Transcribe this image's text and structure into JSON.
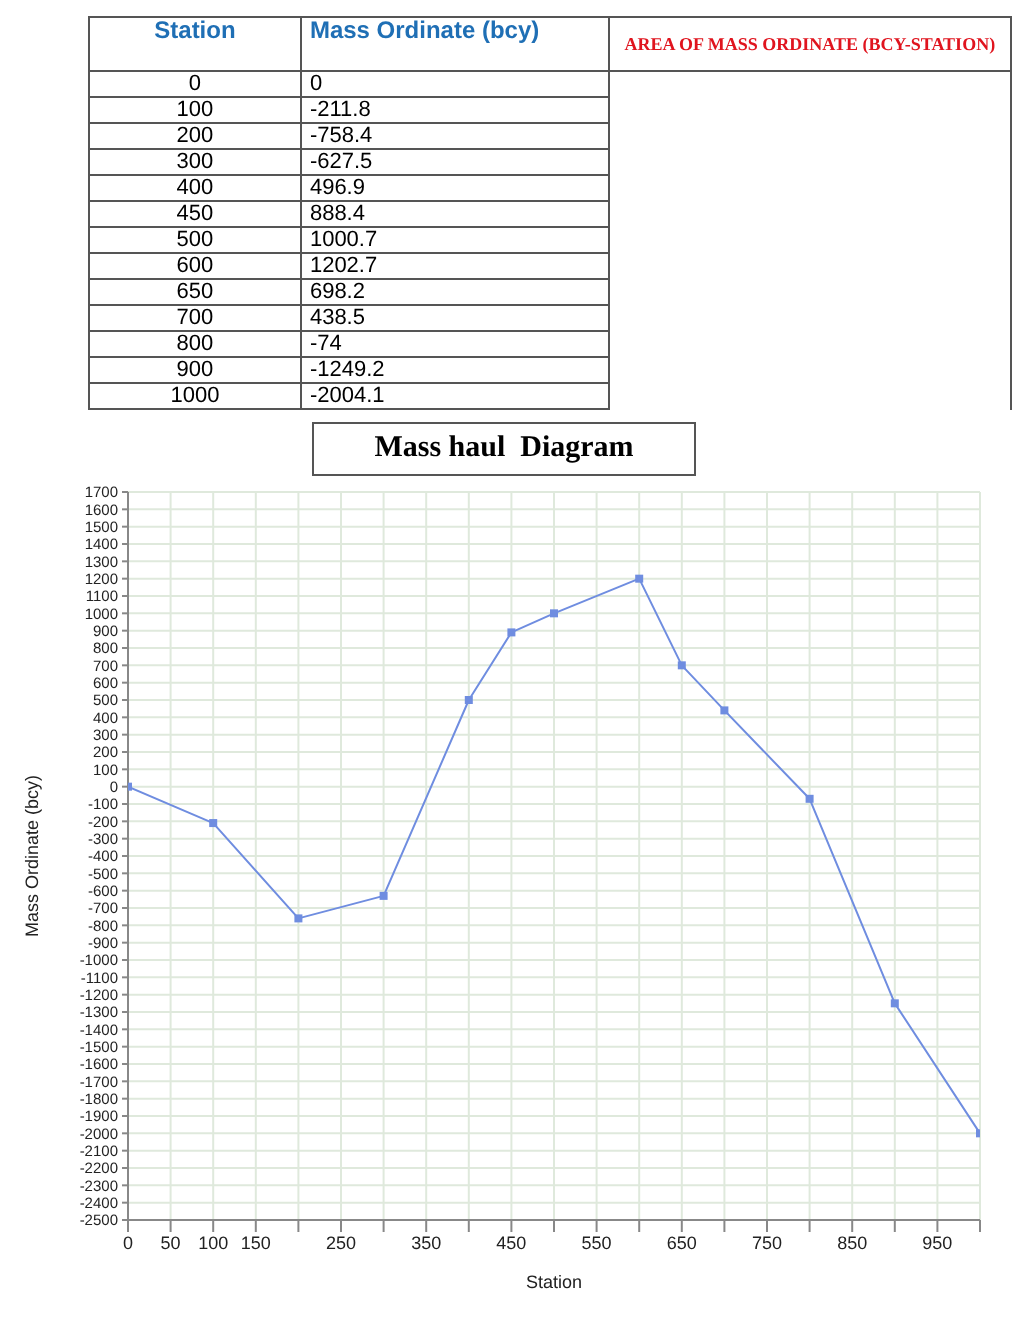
{
  "chart_data": [
    {
      "type": "other",
      "annotations": [
        "Station",
        "Mass Ordinate (bcy)",
        "AREA OF MASS ORDINATE (BCY-STATION)",
        "0",
        "0",
        "100",
        "-211.8",
        "200",
        "-758.4",
        "300",
        "-627.5",
        "400",
        "496.9",
        "450",
        "888.4",
        "500",
        "1000.7",
        "600",
        "1202.7",
        "650",
        "698.2",
        "700",
        "438.5",
        "800",
        "-74",
        "900",
        "-1249.2",
        "1000",
        "-2004.1"
      ]
    },
    {
      "type": "line",
      "title": "Mass haul  Diagram",
      "xlabel": "Station",
      "ylabel": "Mass Ordinate (bcy)",
      "x": [
        0,
        100,
        200,
        300,
        400,
        450,
        500,
        600,
        650,
        700,
        800,
        900,
        1000
      ],
      "series": [
        {
          "color": "#6f8de0",
          "values": [
            0,
            -210,
            -760,
            -630,
            500,
            890,
            1000,
            1200,
            700,
            440,
            -70,
            -1250,
            -2000
          ]
        }
      ],
      "marker": "square",
      "grid": true,
      "xlim": [
        0,
        1000
      ],
      "xticks": [
        0,
        50,
        100,
        150,
        {
          "value": 200,
          "label": null
        },
        250,
        {
          "value": 300,
          "label": null
        },
        350,
        {
          "value": 400,
          "label": null
        },
        450,
        {
          "value": 500,
          "label": null
        },
        550,
        {
          "value": 600,
          "label": null
        },
        650,
        {
          "value": 700,
          "label": null
        },
        750,
        {
          "value": 800,
          "label": null
        },
        850,
        {
          "value": 900,
          "label": null
        },
        950,
        {
          "value": 1000,
          "label": null
        }
      ],
      "ylim": [
        -2500,
        1700
      ],
      "yticks": [
        -2500,
        -2400,
        -2300,
        -2200,
        -2100,
        -2000,
        -1900,
        -1800,
        -1700,
        -1600,
        -1500,
        -1400,
        -1300,
        -1200,
        -1100,
        -1000,
        -900,
        -800,
        -700,
        -600,
        -500,
        -400,
        -300,
        -200,
        -100,
        0,
        100,
        200,
        300,
        400,
        500,
        600,
        700,
        800,
        900,
        1000,
        1100,
        1200,
        1300,
        1400,
        1500,
        1600,
        1700
      ]
    }
  ]
}
